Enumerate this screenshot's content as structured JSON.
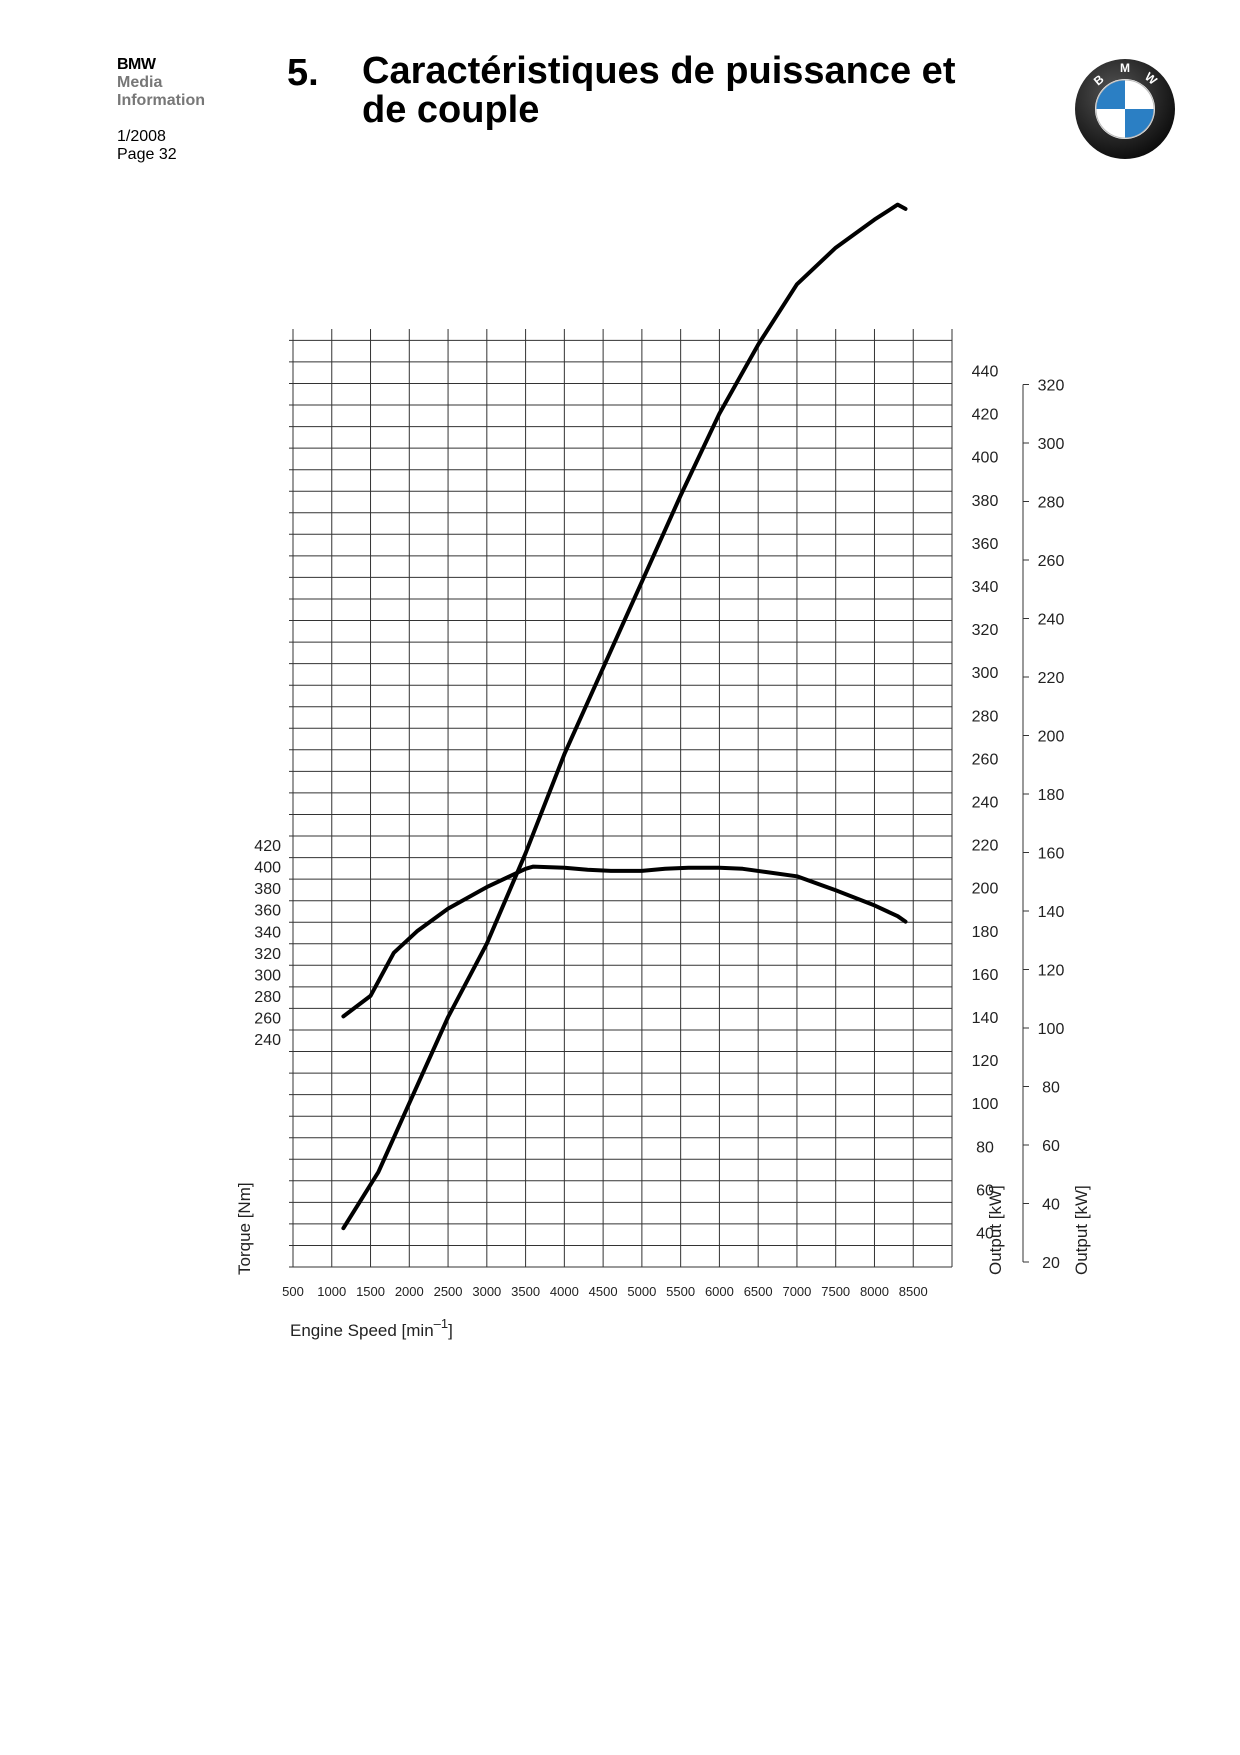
{
  "header": {
    "brand": "BMW",
    "brand_line2": "Media",
    "brand_line3": "Information",
    "date": "1/2008",
    "page": "Page 32",
    "section_number": "5.",
    "title": "Caractéristiques de puissance et de couple"
  },
  "logo": {
    "icon": "bmw-roundel-icon",
    "letters": [
      "B",
      "M",
      "W"
    ],
    "colors": {
      "ring": "#1a1a1a",
      "blue": "#2b7fc4",
      "white": "#ffffff"
    }
  },
  "chart_data": {
    "type": "line",
    "xlabel": "Engine Speed [min",
    "xlabel_sup": "–1",
    "xlabel_close": "]",
    "x_ticks": [
      500,
      1000,
      1500,
      2000,
      2500,
      3000,
      3500,
      4000,
      4500,
      5000,
      5500,
      6000,
      6500,
      7000,
      7500,
      8000,
      8500
    ],
    "xlim": [
      500,
      9000
    ],
    "torque_axis": {
      "label": "Torque [Nm]",
      "ticks": [
        240,
        260,
        280,
        300,
        320,
        340,
        360,
        380,
        400,
        420
      ]
    },
    "output_axis_1": {
      "label": "Output [kW]",
      "ticks": [
        40,
        60,
        80,
        100,
        120,
        140,
        160,
        180,
        200,
        220,
        240,
        260,
        280,
        300,
        320,
        340,
        360,
        380,
        400,
        420,
        440
      ]
    },
    "output_axis_2": {
      "label": "Output [kW]",
      "ticks": [
        20,
        40,
        60,
        80,
        100,
        120,
        140,
        160,
        180,
        200,
        220,
        240,
        260,
        280,
        300,
        320
      ]
    },
    "grid": true,
    "series": [
      {
        "x": [
          1150,
          1500,
          1800,
          2100,
          2500,
          3000,
          3500,
          3600,
          4000,
          4300,
          4600,
          5000,
          5300,
          5600,
          6000,
          6300,
          6600,
          7000,
          7500,
          8000,
          8300,
          8400
        ],
        "values": [
          261,
          280,
          320,
          340,
          361,
          381,
          398,
          400,
          399,
          397,
          396,
          396,
          398,
          399,
          399,
          398,
          395,
          391,
          378,
          364,
          354,
          349
        ]
      },
      {
        "x": [
          1150,
          1600,
          2000,
          2500,
          3000,
          3500,
          4000,
          4500,
          5000,
          5500,
          6000,
          6500,
          7000,
          7500,
          8000,
          8300,
          8400
        ],
        "values": [
          42,
          68,
          100,
          140,
          174,
          216,
          262,
          302,
          342,
          382,
          420,
          452,
          480,
          497,
          510,
          517,
          515
        ]
      }
    ]
  }
}
